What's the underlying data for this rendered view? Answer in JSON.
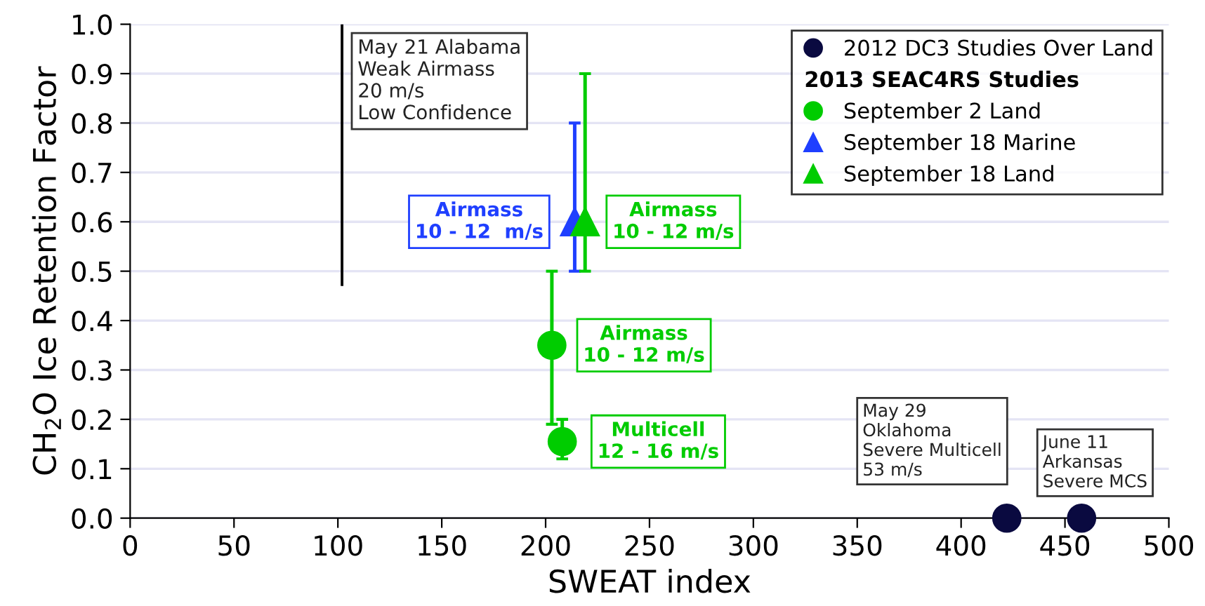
{
  "chart_data": {
    "type": "scatter",
    "xlabel": "SWEAT index",
    "ylabel": "CH$_{2}$O Ice Retention Factor",
    "xlim": [
      0,
      500
    ],
    "xticks": [
      0,
      50,
      100,
      150,
      200,
      250,
      300,
      350,
      400,
      450,
      500
    ],
    "ylim": [
      0,
      1.0
    ],
    "yticks": [
      {
        "value": 0,
        "label": "0.0"
      },
      0.1,
      0.2,
      0.3,
      0.4,
      0.5,
      0.6,
      0.7,
      0.8,
      0.9,
      {
        "value": 1,
        "label": "1.0"
      }
    ],
    "grid": "y",
    "legend": "top right",
    "legend_title": "2013 SEAC4RS Studies",
    "series": [
      {
        "name": "2012 DC3 Studies Over Land",
        "color": "#0a0a40",
        "marker": "circle",
        "x": [
          422,
          458
        ],
        "values": [
          0,
          0
        ]
      },
      {
        "name": "September 2 Land",
        "color": "#00cc00",
        "marker": "circle",
        "x": [
          203,
          208
        ],
        "values": [
          0.35,
          0.155
        ],
        "errors": [
          [
            0.19,
            0.5
          ],
          [
            0.12,
            0.2
          ]
        ]
      },
      {
        "name": "September 18 Marine",
        "color": "#1f3fff",
        "marker": "triangle",
        "x": [
          214
        ],
        "values": [
          0.6
        ],
        "errors": [
          [
            0.5,
            0.8
          ]
        ]
      },
      {
        "name": "September 18 Land",
        "color": "#00cc00",
        "marker": "triangle",
        "x": [
          219
        ],
        "values": [
          0.6
        ],
        "errors": [
          [
            0.5,
            0.9
          ]
        ]
      },
      {
        "type": "bar",
        "color": "#000000",
        "x": [
          102
        ],
        "base": [
          0.47
        ],
        "values": [
          0.53
        ]
      }
    ],
    "annotations": [
      {
        "text": "May 21 Alabama\nWeak Airmass\n20 m/s\nLow Confidence",
        "x": 102,
        "y": 0.735
      },
      {
        "text": "Airmass\n10 - 12  m/s",
        "x": 214,
        "y": 0.6
      },
      {
        "text": "Airmass\n10 - 12 m/s",
        "x": 219,
        "y": 0.6
      },
      {
        "text": "Airmass\n10 - 12 m/s",
        "x": 203,
        "y": 0.35
      },
      {
        "text": "Multicell\n12 - 16 m/s",
        "x": 208,
        "y": 0.155
      },
      {
        "text": "May 29\nOklahoma\nSevere Multicell\n53 m/s",
        "x": 422,
        "y": 0
      },
      {
        "text": "June 11\nArkansas\nSevere MCS",
        "x": 458,
        "y": 0
      }
    ]
  }
}
